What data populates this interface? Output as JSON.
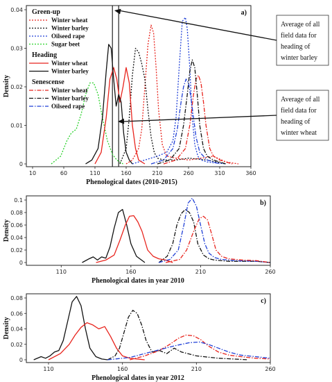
{
  "chart_data": [
    {
      "panel": "a)",
      "type": "line",
      "xlabel": "Phenological dates (2010-2015)",
      "ylabel": "Density",
      "xlim": [
        0,
        360
      ],
      "ylim": [
        0,
        0.04
      ],
      "xticks": [
        10,
        60,
        110,
        160,
        210,
        260,
        310,
        360
      ],
      "yticks": [
        0,
        0.01,
        0.02,
        0.03,
        0.04
      ],
      "vlines": [
        138,
        148
      ],
      "legend": {
        "groups": [
          {
            "title": "Green-up",
            "items": [
              "Winter wheat",
              "Winter barley",
              "Oilseed rape",
              "Sugar beet"
            ]
          },
          {
            "title": "Heading",
            "items": [
              "Winter wheat",
              "Winter barley"
            ]
          },
          {
            "title": "Senescense",
            "items": [
              "Winter wheat",
              "Winter barley",
              "Oilseed rape"
            ]
          }
        ]
      },
      "annotations": [
        {
          "lines": [
            "Average of all",
            "field data for",
            "heading of",
            "winter barley"
          ]
        },
        {
          "lines": [
            "Average of all",
            "field data for",
            "heading of",
            "winter wheat"
          ]
        }
      ],
      "series": [
        {
          "name": "Green-up Winter wheat",
          "color": "#e8231c",
          "dash": "dot",
          "x": [
            160,
            170,
            180,
            185,
            190,
            195,
            200,
            204,
            208,
            212,
            218,
            225,
            240,
            260,
            280,
            300,
            320,
            340
          ],
          "y": [
            0,
            0.001,
            0.004,
            0.009,
            0.02,
            0.031,
            0.036,
            0.034,
            0.025,
            0.014,
            0.005,
            0.002,
            0.0015,
            0.001,
            0.0015,
            0.002,
            0.0005,
            0
          ]
        },
        {
          "name": "Green-up Winter barley",
          "color": "#111111",
          "dash": "dot",
          "x": [
            150,
            160,
            165,
            170,
            175,
            180,
            185,
            190,
            195,
            200,
            205,
            210,
            220,
            240,
            260,
            290,
            320
          ],
          "y": [
            0,
            0.004,
            0.012,
            0.023,
            0.03,
            0.029,
            0.026,
            0.022,
            0.014,
            0.007,
            0.003,
            0.0015,
            0.001,
            0.001,
            0.0015,
            0.001,
            0
          ]
        },
        {
          "name": "Green-up Oilseed rape",
          "color": "#1f3fd6",
          "dash": "dot",
          "x": [
            170,
            190,
            210,
            225,
            235,
            240,
            245,
            250,
            255,
            258,
            262,
            266,
            270,
            275,
            280,
            290,
            300,
            320
          ],
          "y": [
            0,
            0.001,
            0.002,
            0.003,
            0.006,
            0.012,
            0.025,
            0.037,
            0.038,
            0.035,
            0.025,
            0.012,
            0.005,
            0.002,
            0.001,
            0.0005,
            0.0003,
            0
          ]
        },
        {
          "name": "Green-up Sugar beet",
          "color": "#29d22a",
          "dash": "dot",
          "x": [
            40,
            55,
            65,
            72,
            80,
            88,
            95,
            102,
            108,
            115,
            122,
            130,
            138,
            145,
            155
          ],
          "y": [
            0,
            0.002,
            0.006,
            0.008,
            0.009,
            0.013,
            0.018,
            0.021,
            0.021,
            0.018,
            0.012,
            0.006,
            0.0025,
            0.001,
            0
          ]
        },
        {
          "name": "Heading Winter wheat",
          "color": "#e8231c",
          "dash": "solid",
          "x": [
            110,
            120,
            128,
            134,
            140,
            145,
            150,
            155,
            160,
            165,
            170,
            175,
            180,
            190
          ],
          "y": [
            0,
            0.003,
            0.012,
            0.022,
            0.025,
            0.022,
            0.016,
            0.02,
            0.025,
            0.021,
            0.01,
            0.004,
            0.001,
            0
          ]
        },
        {
          "name": "Heading Winter barley",
          "color": "#111111",
          "dash": "solid",
          "x": [
            95,
            105,
            115,
            122,
            128,
            132,
            136,
            140,
            144,
            148,
            152,
            156,
            160,
            165,
            170
          ],
          "y": [
            0,
            0.001,
            0.004,
            0.012,
            0.024,
            0.031,
            0.03,
            0.022,
            0.015,
            0.018,
            0.016,
            0.008,
            0.003,
            0.001,
            0
          ]
        },
        {
          "name": "Senescense Winter wheat",
          "color": "#e8231c",
          "dash": "dashdot",
          "x": [
            220,
            240,
            255,
            262,
            268,
            272,
            276,
            280,
            284,
            288,
            294,
            300,
            310,
            330
          ],
          "y": [
            0,
            0.001,
            0.004,
            0.01,
            0.018,
            0.022,
            0.023,
            0.021,
            0.016,
            0.01,
            0.004,
            0.002,
            0.001,
            0
          ]
        },
        {
          "name": "Senescense Winter barley",
          "color": "#111111",
          "dash": "dashdot",
          "x": [
            210,
            230,
            245,
            252,
            258,
            262,
            266,
            270,
            274,
            278,
            284,
            290,
            300,
            320
          ],
          "y": [
            0,
            0.001,
            0.004,
            0.01,
            0.018,
            0.024,
            0.027,
            0.025,
            0.018,
            0.01,
            0.004,
            0.002,
            0.001,
            0
          ]
        },
        {
          "name": "Senescense Oilseed rape",
          "color": "#1f3fd6",
          "dash": "dashdot",
          "x": [
            200,
            220,
            235,
            242,
            248,
            252,
            256,
            260,
            264,
            268,
            272,
            278,
            290,
            310
          ],
          "y": [
            0,
            0.001,
            0.004,
            0.009,
            0.016,
            0.02,
            0.022,
            0.021,
            0.017,
            0.012,
            0.007,
            0.003,
            0.001,
            0
          ]
        }
      ]
    },
    {
      "panel": "b)",
      "type": "line",
      "xlabel": "Phenological dates in year 2010",
      "ylabel": "Density",
      "xlim": [
        85,
        260
      ],
      "ylim": [
        0,
        0.1
      ],
      "xticks": [
        110,
        160,
        210,
        260
      ],
      "yticks": [
        0,
        0.02,
        0.04,
        0.06,
        0.08,
        0.1
      ],
      "series": [
        {
          "name": "Heading Winter barley",
          "color": "#111111",
          "dash": "solid",
          "x": [
            125,
            130,
            133,
            136,
            139,
            142,
            145,
            148,
            151,
            154,
            157,
            160,
            164,
            170
          ],
          "y": [
            0,
            0.006,
            0.009,
            0.004,
            0.009,
            0.007,
            0.025,
            0.055,
            0.08,
            0.085,
            0.06,
            0.03,
            0.01,
            0
          ]
        },
        {
          "name": "Heading Winter wheat",
          "color": "#e8231c",
          "dash": "solid",
          "x": [
            135,
            142,
            148,
            152,
            156,
            159,
            162,
            165,
            168,
            172,
            176,
            180,
            185,
            190
          ],
          "y": [
            0,
            0.004,
            0.012,
            0.035,
            0.06,
            0.074,
            0.075,
            0.065,
            0.05,
            0.02,
            0.01,
            0.006,
            0.004,
            0
          ]
        },
        {
          "name": "Senescense Winter barley",
          "color": "#111111",
          "dash": "dashdot",
          "x": [
            180,
            186,
            190,
            193,
            196,
            199,
            202,
            205,
            208,
            212,
            216,
            220,
            230,
            250,
            260
          ],
          "y": [
            0,
            0.01,
            0.03,
            0.06,
            0.078,
            0.085,
            0.08,
            0.065,
            0.03,
            0.012,
            0.006,
            0.004,
            0.002,
            0.002,
            0
          ]
        },
        {
          "name": "Senescense Oilseed rape",
          "color": "#1f3fd6",
          "dash": "dashdot",
          "x": [
            180,
            188,
            194,
            198,
            201,
            204,
            207,
            210,
            213,
            216,
            220,
            225,
            235,
            250,
            260
          ],
          "y": [
            0,
            0.005,
            0.02,
            0.06,
            0.095,
            0.103,
            0.09,
            0.06,
            0.03,
            0.015,
            0.008,
            0.005,
            0.003,
            0.002,
            0
          ]
        },
        {
          "name": "Senescense Winter wheat",
          "color": "#e8231c",
          "dash": "dashdot",
          "x": [
            185,
            195,
            200,
            205,
            209,
            212,
            215,
            218,
            221,
            225,
            230,
            240,
            250,
            260
          ],
          "y": [
            0,
            0.005,
            0.02,
            0.05,
            0.07,
            0.074,
            0.068,
            0.045,
            0.02,
            0.01,
            0.006,
            0.004,
            0.003,
            0
          ]
        }
      ]
    },
    {
      "panel": "c)",
      "type": "line",
      "xlabel": "Phenological dates in year 2012",
      "ylabel": "Density",
      "xlim": [
        95,
        260
      ],
      "ylim": [
        0,
        0.08
      ],
      "xticks": [
        110,
        160,
        210,
        260
      ],
      "yticks": [
        0,
        0.02,
        0.04,
        0.06,
        0.08
      ],
      "series": [
        {
          "name": "Heading Winter barley",
          "color": "#111111",
          "dash": "solid",
          "x": [
            100,
            105,
            108,
            111,
            114,
            117,
            120,
            123,
            126,
            129,
            132,
            135,
            138,
            142,
            146,
            150
          ],
          "y": [
            0,
            0.004,
            0.002,
            0.005,
            0.01,
            0.012,
            0.025,
            0.05,
            0.075,
            0.082,
            0.07,
            0.04,
            0.015,
            0.004,
            0.001,
            0
          ]
        },
        {
          "name": "Heading Winter wheat",
          "color": "#e8231c",
          "dash": "solid",
          "x": [
            110,
            118,
            124,
            128,
            132,
            136,
            140,
            144,
            148,
            152,
            156,
            160,
            165,
            175
          ],
          "y": [
            0,
            0.008,
            0.02,
            0.032,
            0.042,
            0.048,
            0.045,
            0.04,
            0.043,
            0.03,
            0.015,
            0.005,
            0.002,
            0
          ]
        },
        {
          "name": "Senescense Winter barley",
          "color": "#111111",
          "dash": "dashdot",
          "x": [
            150,
            155,
            158,
            161,
            164,
            167,
            170,
            173,
            176,
            180,
            185,
            190,
            195,
            200,
            210,
            225,
            245
          ],
          "y": [
            0,
            0.005,
            0.015,
            0.035,
            0.055,
            0.064,
            0.06,
            0.045,
            0.025,
            0.01,
            0.012,
            0.008,
            0.015,
            0.01,
            0.005,
            0.002,
            0
          ]
        },
        {
          "name": "Senescense Winter wheat",
          "color": "#e8231c",
          "dash": "dashdot",
          "x": [
            165,
            175,
            185,
            192,
            198,
            203,
            208,
            213,
            218,
            225,
            232,
            240,
            250,
            260
          ],
          "y": [
            0,
            0.005,
            0.012,
            0.02,
            0.028,
            0.032,
            0.031,
            0.026,
            0.018,
            0.01,
            0.006,
            0.004,
            0.002,
            0.001
          ]
        },
        {
          "name": "Senescense Oilseed rape",
          "color": "#1f3fd6",
          "dash": "dashdot",
          "x": [
            150,
            165,
            175,
            185,
            195,
            205,
            212,
            218,
            225,
            232,
            240,
            250,
            260
          ],
          "y": [
            0,
            0.003,
            0.008,
            0.013,
            0.018,
            0.022,
            0.023,
            0.02,
            0.015,
            0.01,
            0.006,
            0.004,
            0.002
          ]
        }
      ]
    }
  ]
}
